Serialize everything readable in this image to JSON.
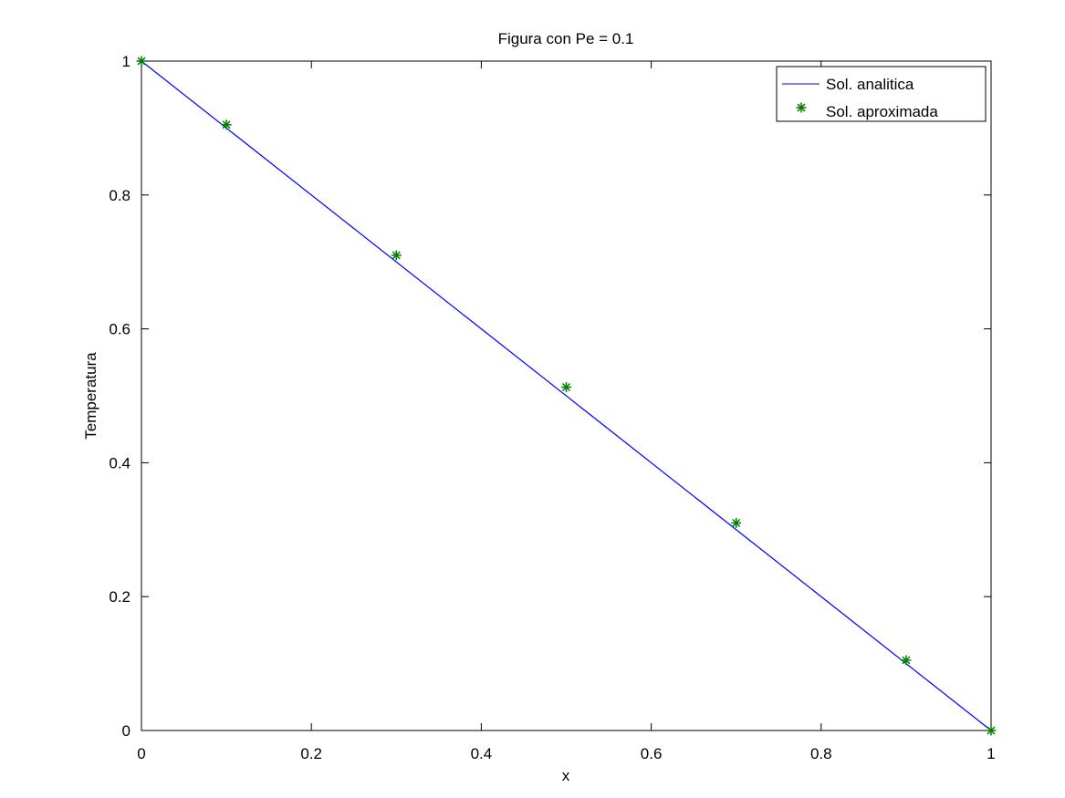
{
  "chart_data": {
    "type": "line",
    "title": "Figura con Pe = 0.1",
    "xlabel": "x",
    "ylabel": "Temperatura",
    "xlim": [
      0,
      1
    ],
    "ylim": [
      0,
      1
    ],
    "xticks": [
      "0",
      "0.2",
      "0.4",
      "0.6",
      "0.8",
      "1"
    ],
    "yticks": [
      "0",
      "0.2",
      "0.4",
      "0.6",
      "0.8",
      "1"
    ],
    "grid": false,
    "legend_position": "top-right",
    "series": [
      {
        "name": "Sol. analitica",
        "style": "line",
        "color": "#0000ff",
        "x": [
          0,
          1
        ],
        "y": [
          1,
          0
        ]
      },
      {
        "name": "Sol. aproximada",
        "style": "markers",
        "marker": "asterisk",
        "color": "#008000",
        "x": [
          0,
          0.1,
          0.3,
          0.5,
          0.7,
          0.9,
          1
        ],
        "y": [
          1,
          0.905,
          0.71,
          0.513,
          0.31,
          0.105,
          0
        ]
      }
    ]
  }
}
